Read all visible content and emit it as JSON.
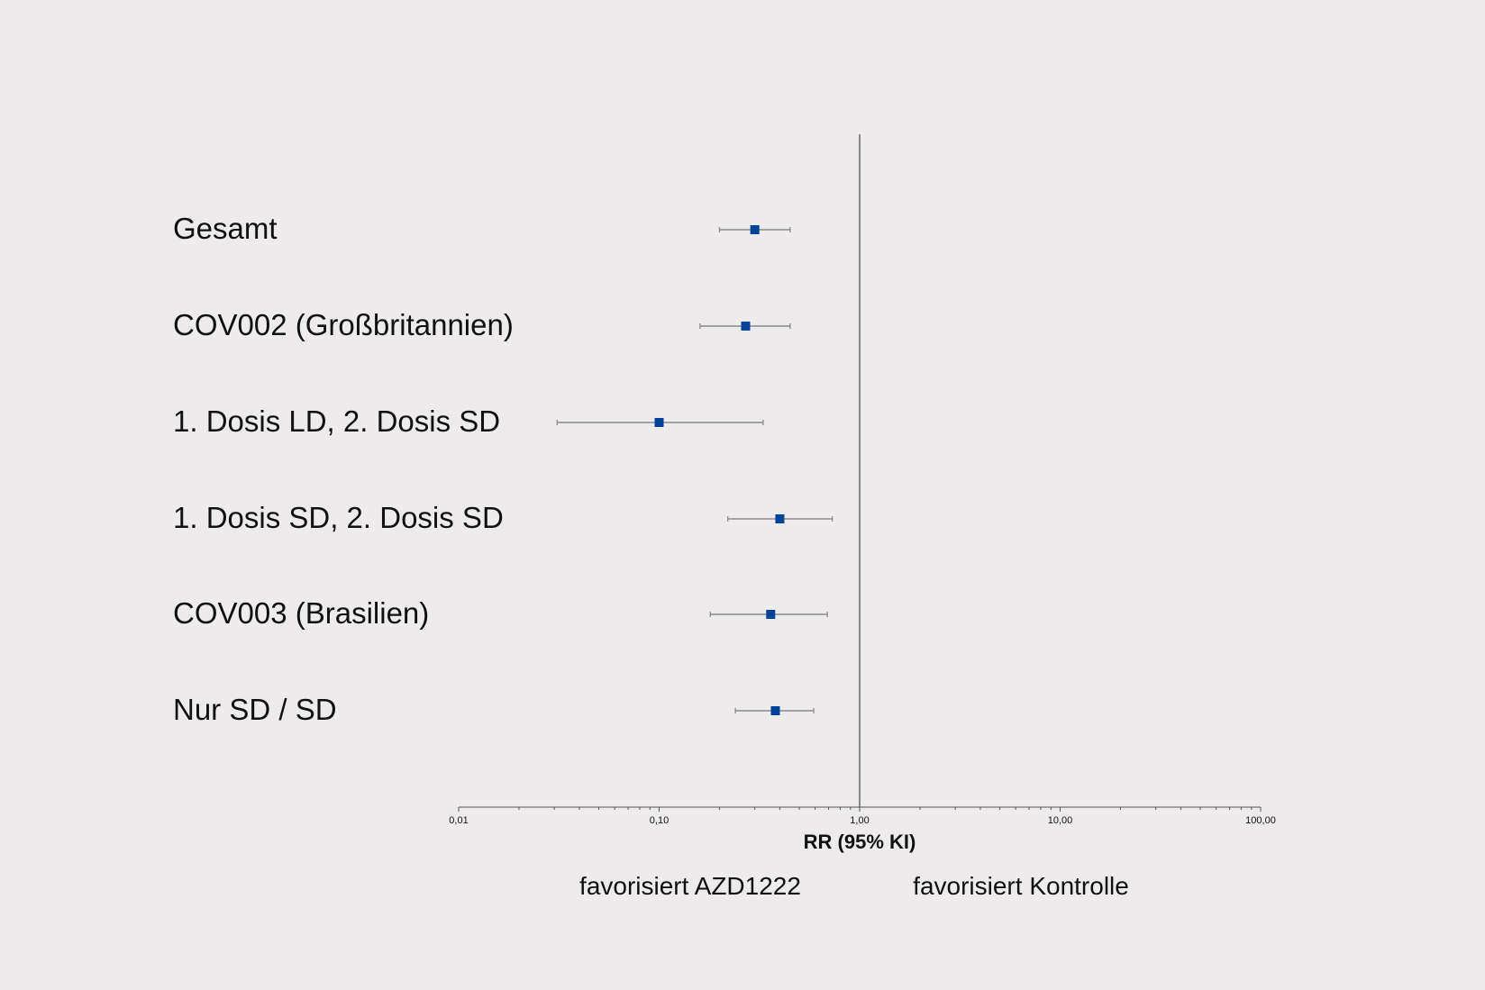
{
  "chart_data": {
    "type": "forest",
    "xlabel": "RR (95% KI)",
    "xscale": "log",
    "xlim": [
      0.01,
      100
    ],
    "reference_line": 1.0,
    "x_tick_labels": [
      "0,01",
      "0,10",
      "1,00",
      "10,00",
      "100,00"
    ],
    "x_ticks": [
      0.01,
      0.1,
      1,
      10,
      100
    ],
    "grid": false,
    "favors_left": "favorisiert AZD1222",
    "favors_right": "favorisiert Kontrolle",
    "marker_color": "#00449a",
    "ci_color": "#8a8a8a",
    "rows": [
      {
        "label": "Gesamt",
        "estimate": 0.3,
        "lower": 0.2,
        "upper": 0.45
      },
      {
        "label": "COV002 (Großbritannien)",
        "estimate": 0.27,
        "lower": 0.16,
        "upper": 0.45
      },
      {
        "label": "1. Dosis LD, 2. Dosis SD",
        "estimate": 0.1,
        "lower": 0.031,
        "upper": 0.33
      },
      {
        "label": "1. Dosis SD, 2. Dosis SD",
        "estimate": 0.4,
        "lower": 0.22,
        "upper": 0.73
      },
      {
        "label": "COV003 (Brasilien)",
        "estimate": 0.36,
        "lower": 0.18,
        "upper": 0.69
      },
      {
        "label": "Nur SD / SD",
        "estimate": 0.38,
        "lower": 0.24,
        "upper": 0.59
      }
    ]
  }
}
